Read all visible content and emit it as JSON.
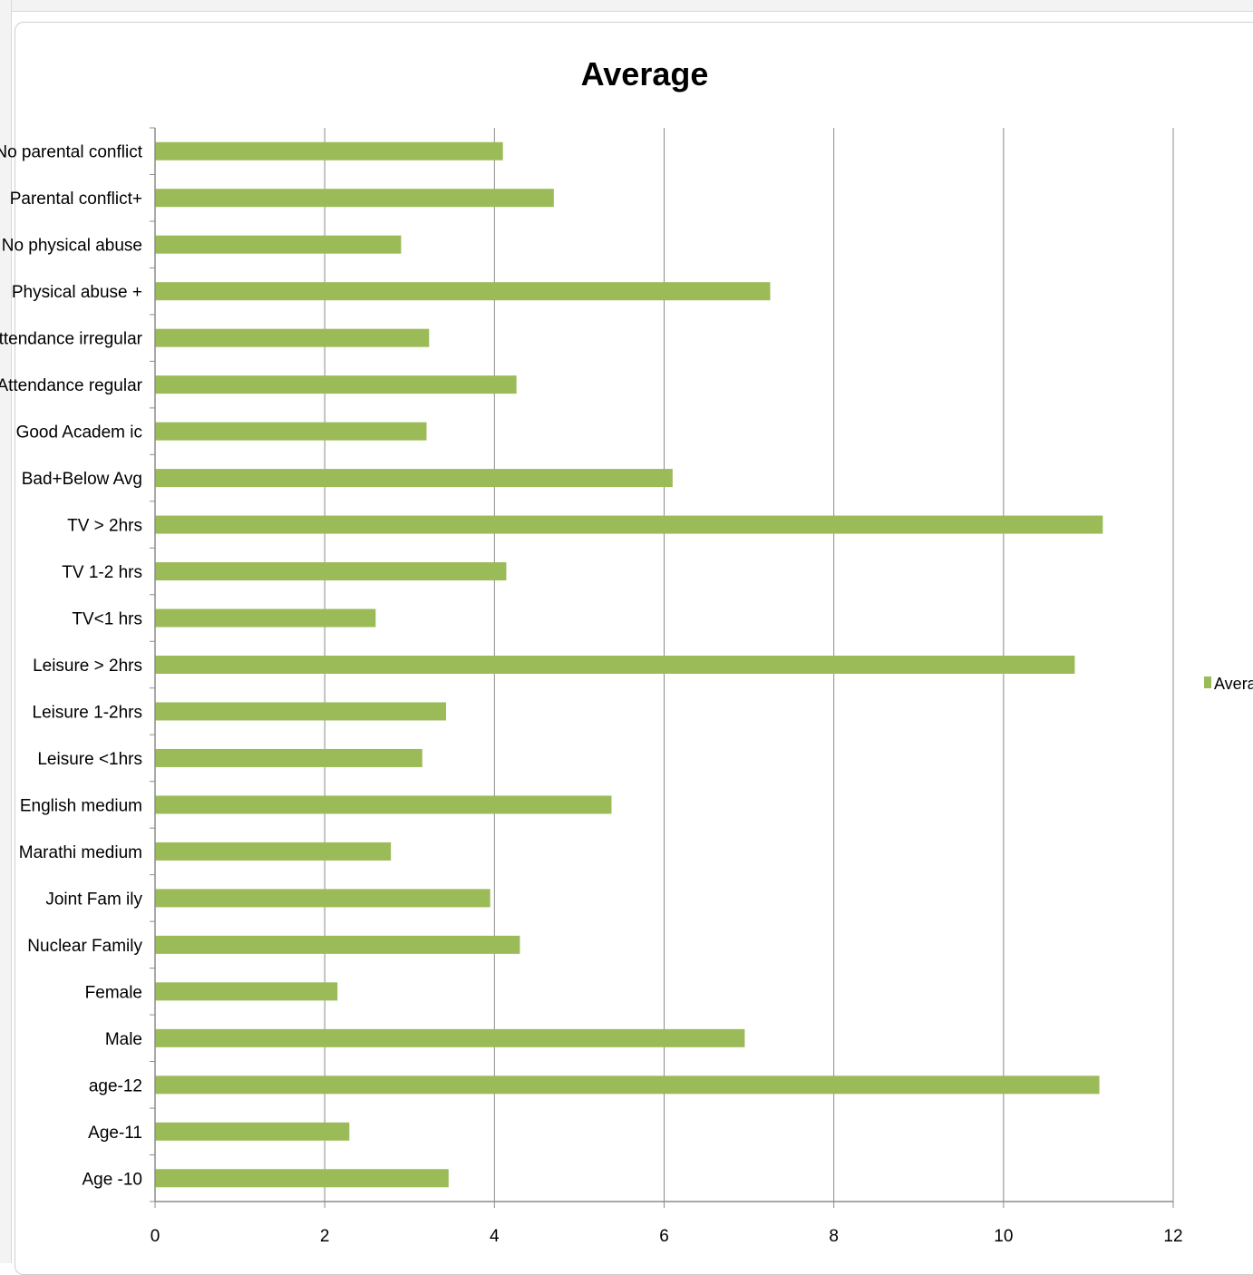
{
  "chart_data": {
    "type": "bar",
    "orientation": "horizontal",
    "title": "Average",
    "categories": [
      "No parental conflict",
      "Parental conflict+",
      "No physical abuse",
      "Physical abuse +",
      "Attendance irregular",
      "Attendance regular",
      "Good Academ ic",
      "Bad+Below Avg",
      "TV > 2hrs",
      "TV 1-2 hrs",
      "TV<1 hrs",
      "Leisure > 2hrs",
      "Leisure 1-2hrs",
      "Leisure <1hrs",
      "English medium",
      "Marathi medium",
      "Joint Fam ily",
      "Nuclear Family",
      "Female",
      "Male",
      "age-12",
      "Age-11",
      "Age -10"
    ],
    "series": [
      {
        "name": "Averag",
        "color": "#9bbb59",
        "values": [
          4.1,
          4.7,
          2.9,
          7.25,
          3.23,
          4.26,
          3.2,
          6.1,
          11.17,
          4.14,
          2.6,
          10.84,
          3.43,
          3.15,
          5.38,
          2.78,
          3.95,
          4.3,
          2.15,
          6.95,
          11.13,
          2.29,
          3.46
        ]
      }
    ],
    "x_ticks": [
      "0",
      "2",
      "4",
      "6",
      "8",
      "10",
      "12"
    ],
    "xlim": [
      0,
      12
    ],
    "grid": "vertical major gridlines",
    "legend_position": "right"
  }
}
